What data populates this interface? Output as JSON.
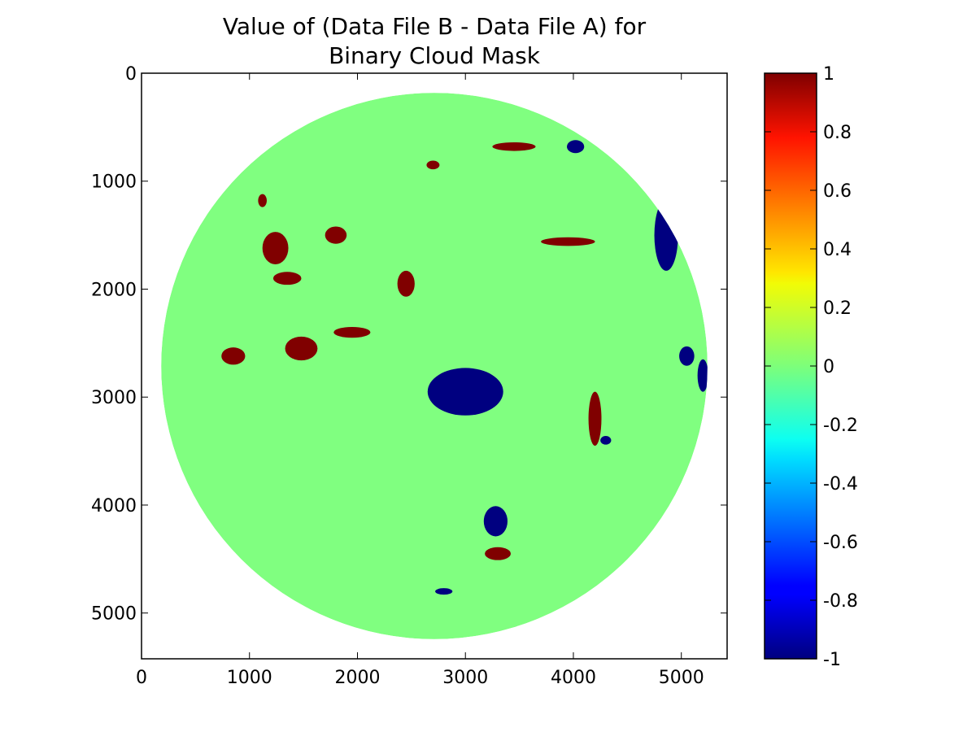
{
  "chart_data": {
    "type": "heatmap",
    "title": [
      "Value of (Data File B - Data File A) for",
      "Binary Cloud Mask"
    ],
    "xlabel": "",
    "ylabel": "",
    "xlim": [
      0,
      5424
    ],
    "ylim": [
      5424,
      0
    ],
    "x_ticks": [
      0,
      1000,
      2000,
      3000,
      4000,
      5000
    ],
    "y_ticks": [
      0,
      1000,
      2000,
      3000,
      4000,
      5000
    ],
    "x_tick_labels": [
      "0",
      "1000",
      "2000",
      "3000",
      "4000",
      "5000"
    ],
    "y_tick_labels": [
      "0",
      "1000",
      "2000",
      "3000",
      "4000",
      "5000"
    ],
    "colormap": "jet",
    "colorbar": {
      "range": [
        -1,
        1
      ],
      "ticks": [
        1,
        0.8,
        0.6,
        0.4,
        0.2,
        0,
        -0.2,
        -0.4,
        -0.6,
        -0.8,
        -1
      ],
      "tick_labels": [
        "1",
        "0.8",
        "0.6",
        "0.4",
        "0.2",
        "0",
        "-0.2",
        "-0.4",
        "-0.6",
        "-0.8",
        "-1"
      ]
    },
    "disk": {
      "center": [
        2712,
        2712
      ],
      "radius": 2530
    },
    "background_value": 0,
    "grid": false,
    "regions": [
      {
        "value": 1,
        "center": [
          1240,
          1620
        ],
        "radius": [
          120,
          150
        ]
      },
      {
        "value": 1,
        "center": [
          1350,
          1900
        ],
        "radius": [
          130,
          60
        ]
      },
      {
        "value": 1,
        "center": [
          850,
          2620
        ],
        "radius": [
          110,
          80
        ]
      },
      {
        "value": 1,
        "center": [
          1480,
          2550
        ],
        "radius": [
          150,
          110
        ]
      },
      {
        "value": 1,
        "center": [
          1950,
          2400
        ],
        "radius": [
          170,
          50
        ]
      },
      {
        "value": 1,
        "center": [
          3300,
          4450
        ],
        "radius": [
          120,
          60
        ]
      },
      {
        "value": 1,
        "center": [
          3950,
          1560
        ],
        "radius": [
          250,
          40
        ]
      },
      {
        "value": 1,
        "center": [
          4200,
          3200
        ],
        "radius": [
          60,
          250
        ]
      },
      {
        "value": 1,
        "center": [
          2700,
          850
        ],
        "radius": [
          60,
          40
        ]
      },
      {
        "value": 1,
        "center": [
          3450,
          680
        ],
        "radius": [
          200,
          40
        ]
      },
      {
        "value": 1,
        "center": [
          1800,
          1500
        ],
        "radius": [
          100,
          80
        ]
      },
      {
        "value": 1,
        "center": [
          2450,
          1950
        ],
        "radius": [
          80,
          120
        ]
      },
      {
        "value": 1,
        "center": [
          1120,
          1180
        ],
        "radius": [
          40,
          60
        ]
      },
      {
        "value": -1,
        "center": [
          4860,
          1500
        ],
        "radius": [
          110,
          330
        ]
      },
      {
        "value": -1,
        "center": [
          4020,
          680
        ],
        "radius": [
          80,
          60
        ]
      },
      {
        "value": -1,
        "center": [
          3280,
          4150
        ],
        "radius": [
          110,
          140
        ]
      },
      {
        "value": -1,
        "center": [
          3000,
          2950
        ],
        "radius": [
          350,
          220
        ]
      },
      {
        "value": -1,
        "center": [
          5050,
          2620
        ],
        "radius": [
          70,
          90
        ]
      },
      {
        "value": -1,
        "center": [
          5200,
          2800
        ],
        "radius": [
          50,
          150
        ]
      },
      {
        "value": -1,
        "center": [
          4300,
          3400
        ],
        "radius": [
          50,
          40
        ]
      },
      {
        "value": -1,
        "center": [
          2800,
          4800
        ],
        "radius": [
          80,
          30
        ]
      }
    ]
  }
}
